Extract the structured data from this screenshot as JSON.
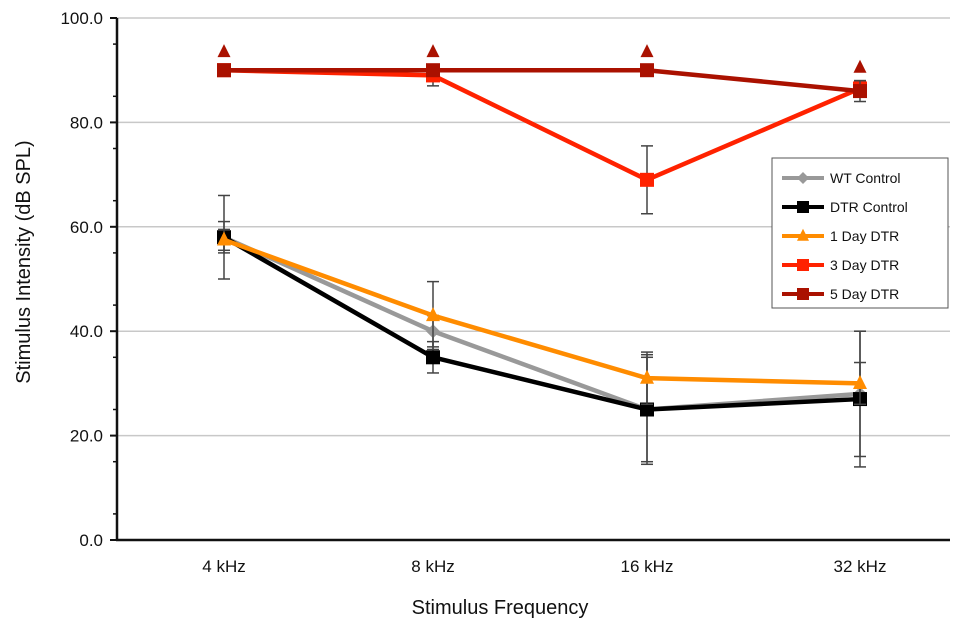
{
  "chart_data": {
    "type": "line",
    "xlabel": "Stimulus Frequency",
    "ylabel": "Stimulus Intensity (dB SPL)",
    "categories": [
      "4 kHz",
      "8 kHz",
      "16 kHz",
      "32 kHz"
    ],
    "ylim": [
      0,
      100
    ],
    "yticks": [
      "0.0",
      "20.0",
      "40.0",
      "60.0",
      "80.0",
      "100.0"
    ],
    "grid": true,
    "legend_position": "right",
    "series": [
      {
        "name": "WT Control",
        "color": "#999999",
        "marker": "diamond",
        "values": [
          58,
          40,
          25,
          28
        ],
        "error": [
          3,
          3,
          10,
          12
        ]
      },
      {
        "name": "DTR Control",
        "color": "#000000",
        "marker": "square",
        "values": [
          58,
          35,
          25,
          27
        ],
        "error": [
          8,
          3,
          10.5,
          13
        ]
      },
      {
        "name": "1 Day DTR",
        "color": "#ff8c00",
        "marker": "triangle",
        "values": [
          57.5,
          43,
          31,
          30
        ],
        "error": [
          2,
          6.5,
          5,
          4
        ]
      },
      {
        "name": "3 Day DTR",
        "color": "#ff2200",
        "marker": "square",
        "values": [
          90,
          89,
          69,
          86.5
        ],
        "error": [
          0,
          2,
          6.5,
          1.5
        ]
      },
      {
        "name": "5 Day DTR",
        "color": "#aa1100",
        "marker": "square",
        "values": [
          90,
          90,
          90,
          86
        ],
        "error": [
          0,
          0,
          0,
          2
        ]
      }
    ],
    "annotations": [
      {
        "marker": "triangle",
        "color": "#aa1100",
        "category": "4 kHz",
        "value": 93.5
      },
      {
        "marker": "triangle",
        "color": "#aa1100",
        "category": "8 kHz",
        "value": 93.5
      },
      {
        "marker": "triangle",
        "color": "#aa1100",
        "category": "16 kHz",
        "value": 93.5
      },
      {
        "marker": "triangle",
        "color": "#aa1100",
        "category": "32 kHz",
        "value": 90.5
      }
    ]
  }
}
